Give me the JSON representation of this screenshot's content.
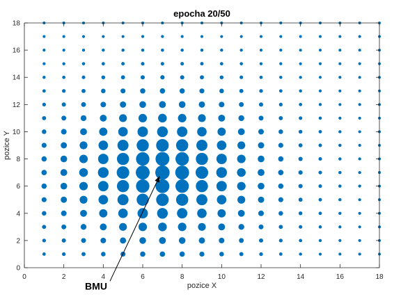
{
  "chart_data": {
    "type": "scatter",
    "title": "epocha 20/50",
    "xlabel": "pozice X",
    "ylabel": "pozice Y",
    "xlim": [
      0,
      18
    ],
    "ylim": [
      0,
      18
    ],
    "xticks": [
      0,
      2,
      4,
      6,
      8,
      10,
      12,
      14,
      16,
      18
    ],
    "yticks": [
      0,
      2,
      4,
      6,
      8,
      10,
      12,
      14,
      16,
      18
    ],
    "grid": false,
    "marker_color": "#0072bd",
    "grid_points": {
      "x_from": 1,
      "x_to": 18,
      "y_from": 1,
      "y_to": 18,
      "step": 1
    },
    "marker_size": "decreases with distance from BMU",
    "bmu": {
      "x": 7,
      "y": 7
    },
    "annotation": {
      "text": "BMU",
      "points_to": [
        7,
        7
      ],
      "text_at": [
        3,
        -1.6
      ]
    }
  }
}
